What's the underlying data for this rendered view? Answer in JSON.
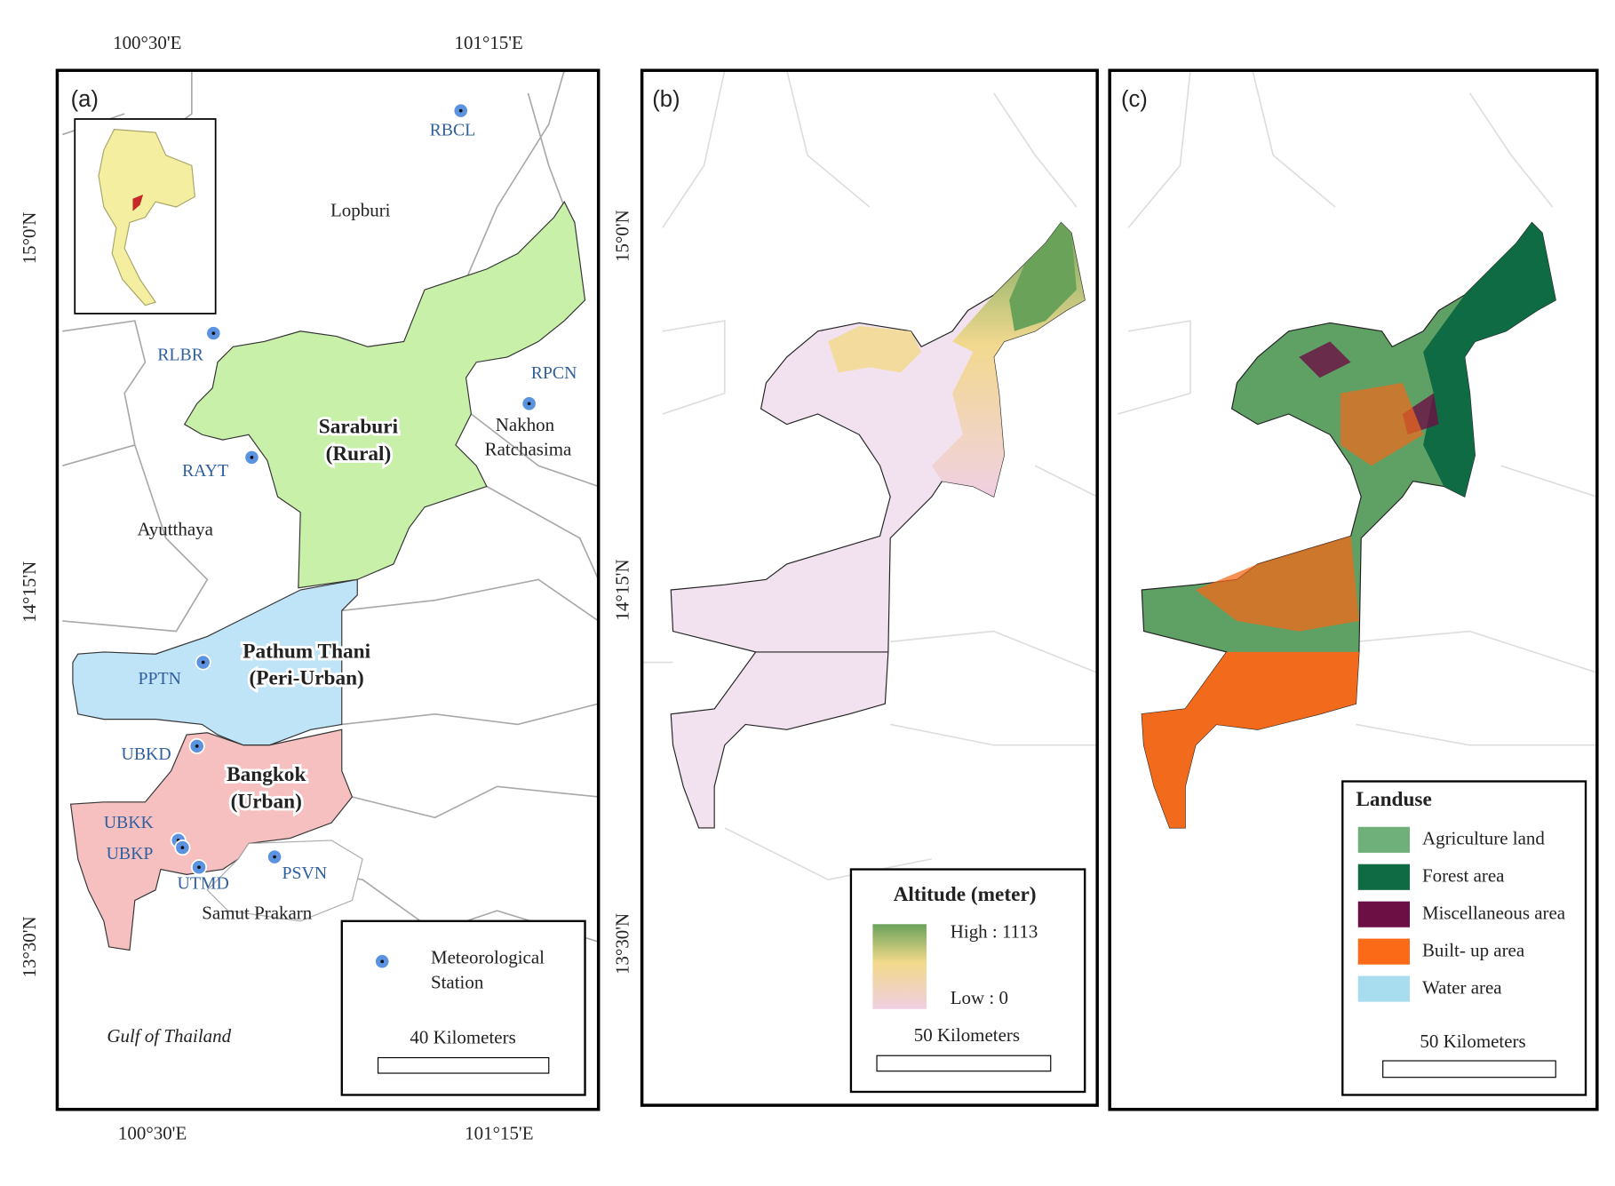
{
  "panels": [
    {
      "label": "(a)",
      "top_axis": [
        "100°30'E",
        "101°15'E"
      ],
      "bottom_axis": [
        "100°30'E",
        "101°15'E"
      ],
      "left_axis": [
        "15°0'N",
        "14°15'N",
        "13°30'N"
      ],
      "places": [
        "Lopburi",
        "Nakhon",
        "Ratchasima",
        "Ayutthaya",
        "Samut Prakarn",
        "Gulf of Thailand"
      ],
      "zones": [
        {
          "name": "Saraburi",
          "kind": "(Rural)"
        },
        {
          "name": "Pathum Thani",
          "kind": "(Peri-Urban)"
        },
        {
          "name": "Bangkok",
          "kind": "(Urban)"
        }
      ],
      "stations": [
        "RBCL",
        "RLBR",
        "RPCN",
        "RAYT",
        "PPTN",
        "UBKD",
        "UBKK",
        "UBKP",
        "UTMD",
        "PSVN"
      ],
      "legend": {
        "item": [
          "Meteorological",
          "Station"
        ],
        "scale": "40 Kilometers"
      }
    },
    {
      "label": "(b)",
      "left_axis": [
        "15°0'N",
        "14°15'N",
        "13°30'N"
      ],
      "legend": {
        "title": "Altitude (meter)",
        "high": "High : 1113",
        "low": "Low : 0",
        "scale": "50 Kilometers"
      }
    },
    {
      "label": "(c)",
      "legend": {
        "title": "Landuse",
        "items": [
          "Agriculture land",
          "Forest area",
          "Miscellaneous area",
          "Built- up area",
          "Water area"
        ],
        "scale": "50 Kilometers"
      }
    }
  ]
}
